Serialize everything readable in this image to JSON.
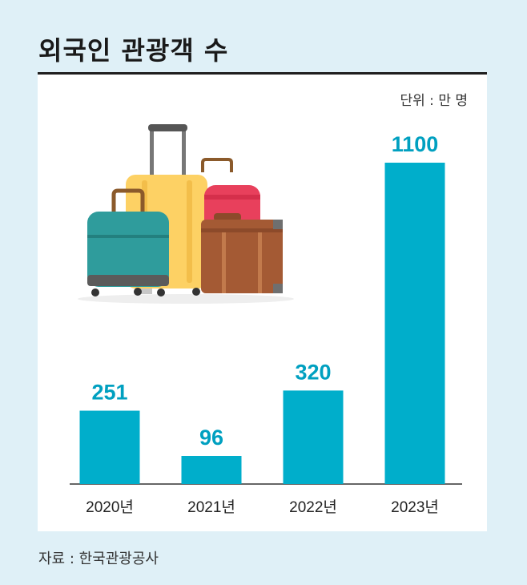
{
  "header": {
    "title": "외국인 관광객 수"
  },
  "footer": {
    "source": "자료 : 한국관광공사"
  },
  "chart_data": {
    "type": "bar",
    "unit_label": "단위 : 만 명",
    "categories": [
      "2020년",
      "2021년",
      "2022년",
      "2023년"
    ],
    "values": [
      251,
      96,
      320,
      1100
    ],
    "data_labels": [
      "251",
      "96",
      "320",
      "1100"
    ],
    "ylim": [
      0,
      1100
    ],
    "bar_color": "#00aecb",
    "label_color": "#00a0c0",
    "grid": false,
    "legend": "none"
  },
  "illustration": {
    "icon": "luggage-illustration"
  }
}
